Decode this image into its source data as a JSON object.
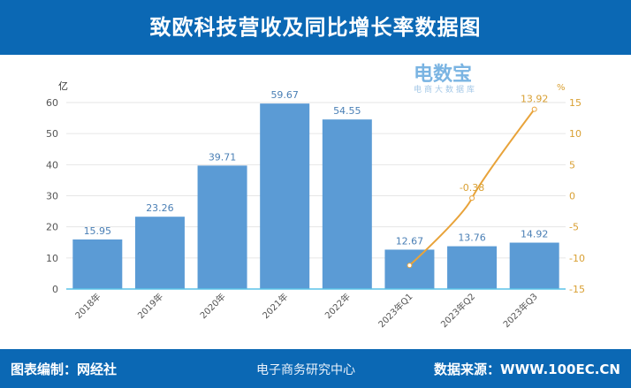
{
  "header": {
    "title": "致欧科技营收及同比增长率数据图"
  },
  "footer": {
    "left": "图表编制：网经社",
    "right": "数据来源：WWW.100EC.CN",
    "watermark": "电子商务研究中心"
  },
  "logo": {
    "name": "电数宝",
    "sub": "电商大数据库"
  },
  "chart_data": {
    "type": "bar+line",
    "categories": [
      "2018年",
      "2019年",
      "2020年",
      "2021年",
      "2022年",
      "2023年Q1",
      "2023年Q2",
      "2023年Q3"
    ],
    "y_left": {
      "unit": "亿",
      "ylim": [
        0,
        60
      ],
      "ticks": [
        0,
        10,
        20,
        30,
        40,
        50,
        60
      ]
    },
    "y_right": {
      "unit": "%",
      "ylim": [
        -15,
        15
      ],
      "ticks": [
        -15,
        -10,
        -5,
        0,
        5,
        10,
        15
      ]
    },
    "series": [
      {
        "type": "bar",
        "axis": "left",
        "color": "#5b9bd5",
        "values": [
          15.95,
          23.26,
          39.71,
          59.67,
          54.55,
          12.67,
          13.76,
          14.92
        ],
        "labels": [
          "15.95",
          "23.26",
          "39.71",
          "59.67",
          "54.55",
          "12.67",
          "13.76",
          "14.92"
        ]
      },
      {
        "type": "line",
        "axis": "right",
        "color": "#e8a33a",
        "x": [
          "2023年Q1",
          "2023年Q2",
          "2023年Q3"
        ],
        "values": [
          -11.2,
          -0.38,
          13.92
        ],
        "labels": [
          "",
          "-0.38",
          "13.92"
        ]
      }
    ],
    "grid": true
  }
}
